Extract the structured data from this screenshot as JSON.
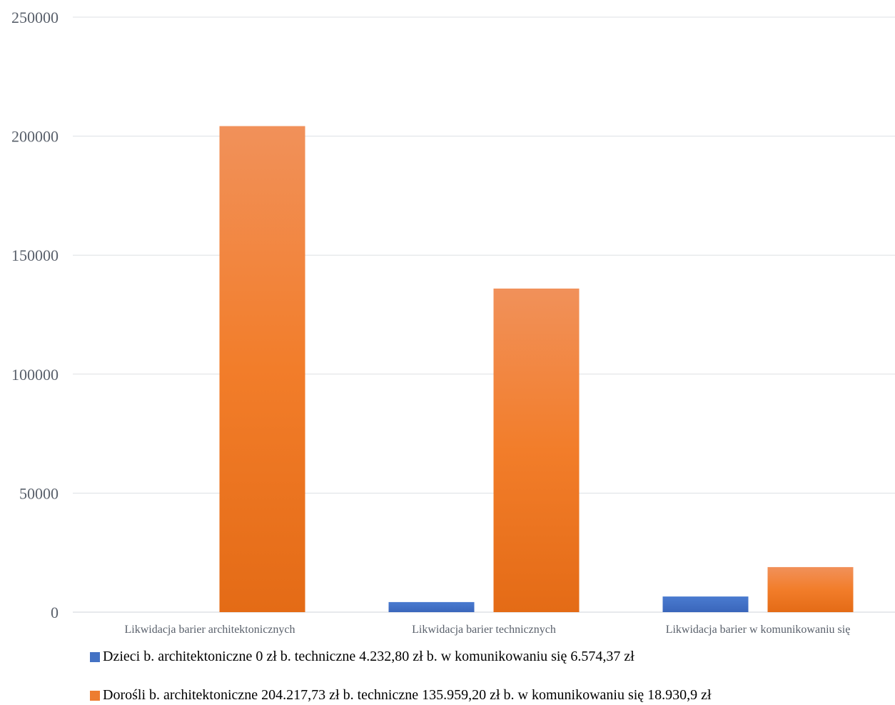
{
  "chart_data": {
    "type": "bar",
    "categories": [
      "Likwidacja barier architektonicznych",
      "Likwidacja barier technicznych",
      "Likwidacja barier w komunikowaniu się"
    ],
    "series": [
      {
        "name": "Dzieci b. architektoniczne 0 zł b. techniczne 4.232,80 zł b. w komunikowaniu się 6.574,37 zł",
        "values": [
          0,
          4232.8,
          6574.37
        ],
        "color": "#4472c4"
      },
      {
        "name": "Dorośli b. architektoniczne 204.217,73 zł b. techniczne 135.959,20 zł b. w komunikowaniu się 18.930,9 zł",
        "values": [
          204217.73,
          135959.2,
          18930.9
        ],
        "color": "#ed7d31"
      }
    ],
    "y_ticks": [
      "0",
      "50000",
      "100000",
      "150000",
      "200000",
      "250000"
    ],
    "ylim": [
      0,
      250000
    ],
    "grid": true,
    "legend_position": "bottom-left",
    "title": "",
    "xlabel": "",
    "ylabel": ""
  }
}
